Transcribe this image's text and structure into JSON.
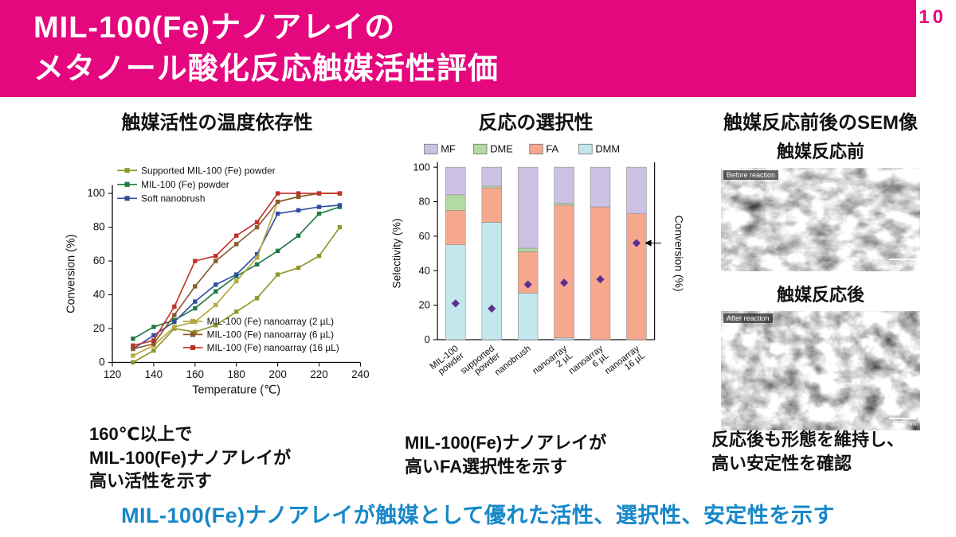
{
  "page": {
    "number": "10",
    "title_line1": "MIL-100(Fe)ナノアレイの",
    "title_line2": "メタノール酸化反応触媒活性評価",
    "conclusion": "MIL-100(Fe)ナノアレイが触媒として優れた活性、選択性、安定性を示す"
  },
  "colors": {
    "banner_pink": "#e4077e",
    "conclusion_blue": "#1787c9"
  },
  "sections": {
    "left": {
      "heading": "触媒活性の温度依存性",
      "note_lines": [
        "160℃以上で",
        "MIL-100(Fe)ナノアレイが",
        "高い活性を示す"
      ]
    },
    "middle": {
      "heading": "反応の選択性",
      "note_lines": [
        "MIL-100(Fe)ナノアレイが",
        "高いFA選択性を示す"
      ]
    },
    "right": {
      "heading": "触媒反応前後のSEM像",
      "before_label": "触媒反応前",
      "after_label": "触媒反応後",
      "before_tag": "Before reaction",
      "after_tag": "After reaction",
      "scalebar": "200 nm",
      "note_lines": [
        "反応後も形態を維持し、",
        "高い安定性を確認"
      ]
    }
  },
  "chart_data": [
    {
      "type": "line",
      "title": "触媒活性の温度依存性",
      "xlabel": "Temperature (℃)",
      "ylabel": "Conversion (%)",
      "xlim": [
        120,
        240
      ],
      "ylim": [
        0,
        100
      ],
      "xticks": [
        120,
        140,
        160,
        180,
        200,
        220,
        240
      ],
      "yticks": [
        0,
        20,
        40,
        60,
        80,
        100
      ],
      "x": [
        130,
        140,
        150,
        160,
        170,
        180,
        190,
        200,
        210,
        220,
        230
      ],
      "series": [
        {
          "name": "Supported MIL-100 (Fe) powder",
          "color": "#8f972b",
          "legend": "top",
          "values": [
            0,
            7,
            20,
            18,
            22,
            30,
            38,
            52,
            56,
            63,
            80
          ]
        },
        {
          "name": "MIL-100 (Fe) powder",
          "color": "#1f7a40",
          "legend": "top",
          "values": [
            14,
            21,
            25,
            32,
            42,
            51,
            58,
            66,
            75,
            88,
            92
          ]
        },
        {
          "name": "Soft nanobrush",
          "color": "#2f4f9f",
          "legend": "top",
          "values": [
            8,
            16,
            24,
            36,
            46,
            52,
            64,
            88,
            90,
            92,
            93
          ]
        },
        {
          "name": "MIL-100 (Fe) nanoarray (2 µL)",
          "color": "#b5a93f",
          "legend": "bottom",
          "values": [
            4,
            10,
            21,
            24,
            34,
            48,
            62,
            95,
            98,
            100,
            100
          ]
        },
        {
          "name": "MIL-100 (Fe) nanoarray (6 µL)",
          "color": "#8a5a2b",
          "legend": "bottom",
          "values": [
            8,
            11,
            28,
            45,
            60,
            70,
            80,
            95,
            98,
            100,
            100
          ]
        },
        {
          "name": "MIL-100 (Fe) nanoarray (16 µL)",
          "color": "#c23128",
          "legend": "bottom",
          "values": [
            10,
            13,
            33,
            60,
            63,
            75,
            83,
            100,
            100,
            100,
            100
          ]
        }
      ]
    },
    {
      "type": "stacked-bar",
      "title": "反応の選択性",
      "ylabel": "Selectivity (%)",
      "y2label": "Conversion (%)",
      "ylim": [
        0,
        100
      ],
      "yticks": [
        0,
        20,
        40,
        60,
        80,
        100
      ],
      "categories": [
        [
          "MIL-100",
          "powder"
        ],
        [
          "supported",
          "powder"
        ],
        [
          "nanobrush",
          ""
        ],
        [
          "nanoarray",
          "2 µL"
        ],
        [
          "nanoarray",
          "6 µL"
        ],
        [
          "nanoarray",
          "16 µL"
        ]
      ],
      "stack_order": [
        "DMM",
        "FA",
        "DME",
        "MF"
      ],
      "legend_order": [
        "MF",
        "DME",
        "FA",
        "DMM"
      ],
      "series": [
        {
          "name": "MF",
          "color": "#cdc1e3",
          "values": [
            16,
            11,
            47,
            21,
            23,
            27
          ]
        },
        {
          "name": "DME",
          "color": "#b3d9a4",
          "values": [
            9,
            1,
            2,
            1,
            0,
            0
          ]
        },
        {
          "name": "FA",
          "color": "#f5a88d",
          "values": [
            20,
            20,
            24,
            77,
            77,
            73
          ]
        },
        {
          "name": "DMM",
          "color": "#c3e7ec",
          "values": [
            55,
            68,
            27,
            1,
            0,
            0
          ]
        }
      ],
      "conversion": {
        "name": "Conversion",
        "color": "#5b2f90",
        "values": [
          21,
          18,
          32,
          33,
          35,
          56
        ]
      }
    }
  ]
}
